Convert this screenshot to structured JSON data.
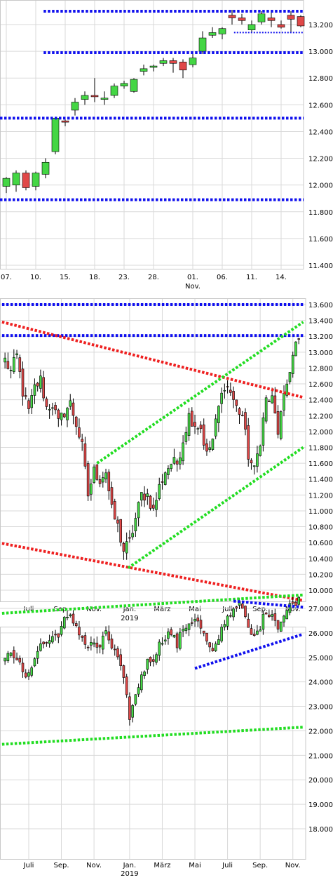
{
  "colors": {
    "up": "#44d644",
    "down": "#e04848",
    "wick": "#000000",
    "blue": "#1010ee",
    "red": "#ee2020",
    "green": "#22dd22",
    "grid": "#d9d9d9"
  },
  "chart_data": [
    {
      "type": "candlestick",
      "ylim": [
        11400,
        13400
      ],
      "yticks": [
        11400,
        11600,
        11800,
        12000,
        12200,
        12400,
        12600,
        12800,
        13000,
        13200
      ],
      "ytick_labels": [
        "11.400",
        "11.600",
        "11.800",
        "12.000",
        "12.200",
        "12.400",
        "12.600",
        "12.800",
        "13.000",
        "13.200"
      ],
      "xticks": [
        {
          "idx": 0,
          "label": "07."
        },
        {
          "idx": 3,
          "label": "10."
        },
        {
          "idx": 6,
          "label": "15."
        },
        {
          "idx": 9,
          "label": "18."
        },
        {
          "idx": 12,
          "label": "23."
        },
        {
          "idx": 15,
          "label": "28."
        },
        {
          "idx": 19,
          "label": "01."
        },
        {
          "idx": 22,
          "label": "06."
        },
        {
          "idx": 25,
          "label": "11."
        },
        {
          "idx": 28,
          "label": "14."
        }
      ],
      "sublabels": [
        {
          "idx": 19,
          "label": "Nov."
        }
      ],
      "candles": [
        {
          "o": 11990,
          "h": 12060,
          "l": 11940,
          "c": 12050
        },
        {
          "o": 12000,
          "h": 12110,
          "l": 11950,
          "c": 12090
        },
        {
          "o": 12090,
          "h": 12110,
          "l": 11960,
          "c": 11980
        },
        {
          "o": 11990,
          "h": 12100,
          "l": 11960,
          "c": 12090
        },
        {
          "o": 12080,
          "h": 12200,
          "l": 12050,
          "c": 12170
        },
        {
          "o": 12250,
          "h": 12510,
          "l": 12230,
          "c": 12500
        },
        {
          "o": 12480,
          "h": 12510,
          "l": 12440,
          "c": 12470
        },
        {
          "o": 12560,
          "h": 12650,
          "l": 12520,
          "c": 12620
        },
        {
          "o": 12640,
          "h": 12700,
          "l": 12600,
          "c": 12670
        },
        {
          "o": 12670,
          "h": 12800,
          "l": 12620,
          "c": 12660
        },
        {
          "o": 12640,
          "h": 12700,
          "l": 12600,
          "c": 12650
        },
        {
          "o": 12670,
          "h": 12760,
          "l": 12650,
          "c": 12740
        },
        {
          "o": 12740,
          "h": 12780,
          "l": 12720,
          "c": 12760
        },
        {
          "o": 12700,
          "h": 12800,
          "l": 12690,
          "c": 12790
        },
        {
          "o": 12850,
          "h": 12900,
          "l": 12820,
          "c": 12870
        },
        {
          "o": 12880,
          "h": 12900,
          "l": 12850,
          "c": 12890
        },
        {
          "o": 12910,
          "h": 12950,
          "l": 12890,
          "c": 12930
        },
        {
          "o": 12930,
          "h": 12950,
          "l": 12840,
          "c": 12910
        },
        {
          "o": 12920,
          "h": 12940,
          "l": 12800,
          "c": 12860
        },
        {
          "o": 12900,
          "h": 12980,
          "l": 12880,
          "c": 12950
        },
        {
          "o": 13000,
          "h": 13150,
          "l": 12980,
          "c": 13100
        },
        {
          "o": 13120,
          "h": 13180,
          "l": 13100,
          "c": 13140
        },
        {
          "o": 13130,
          "h": 13180,
          "l": 13090,
          "c": 13170
        },
        {
          "o": 13270,
          "h": 13310,
          "l": 13200,
          "c": 13250
        },
        {
          "o": 13250,
          "h": 13280,
          "l": 13200,
          "c": 13230
        },
        {
          "o": 13160,
          "h": 13230,
          "l": 13140,
          "c": 13200
        },
        {
          "o": 13220,
          "h": 13300,
          "l": 13200,
          "c": 13280
        },
        {
          "o": 13250,
          "h": 13300,
          "l": 13180,
          "c": 13230
        },
        {
          "o": 13200,
          "h": 13230,
          "l": 13170,
          "c": 13180
        },
        {
          "o": 13270,
          "h": 13300,
          "l": 13140,
          "c": 13240
        },
        {
          "o": 13260,
          "h": 13270,
          "l": 13180,
          "c": 13190
        }
      ],
      "lines": [
        {
          "color": "blue",
          "style": "heavy",
          "from": [
            3.8,
            13300
          ],
          "to": [
            30.4,
            13300
          ]
        },
        {
          "color": "blue",
          "style": "heavy",
          "from": [
            3.8,
            12990
          ],
          "to": [
            30.4,
            12990
          ]
        },
        {
          "color": "blue",
          "style": "heavy",
          "from": [
            -1,
            12500
          ],
          "to": [
            30.4,
            12500
          ]
        },
        {
          "color": "blue",
          "style": "heavy",
          "from": [
            -1,
            11890
          ],
          "to": [
            30.4,
            11890
          ]
        },
        {
          "color": "blue",
          "style": "thin",
          "from": [
            23.2,
            13140
          ],
          "to": [
            30.4,
            13140
          ]
        }
      ]
    },
    {
      "type": "candlestick",
      "ylim": [
        9900,
        13700
      ],
      "yticks": [
        10000,
        10200,
        10400,
        10600,
        10800,
        11000,
        11200,
        11400,
        11600,
        11800,
        12000,
        12200,
        12400,
        12600,
        12800,
        13000,
        13200,
        13400,
        13600
      ],
      "ytick_labels": [
        "10.000",
        "10.200",
        "10.400",
        "10.600",
        "10.800",
        "11.000",
        "11.200",
        "11.400",
        "11.600",
        "11.800",
        "12.000",
        "12.200",
        "12.400",
        "12.600",
        "12.800",
        "13.000",
        "13.200",
        "13.400",
        "13.600"
      ],
      "xticks": [
        {
          "idx": 8,
          "label": "Juli"
        },
        {
          "idx": 19,
          "label": "Sep."
        },
        {
          "idx": 30,
          "label": "Nov."
        },
        {
          "idx": 42,
          "label": "Jan."
        },
        {
          "idx": 53,
          "label": "März"
        },
        {
          "idx": 64,
          "label": "Mai"
        },
        {
          "idx": 75,
          "label": "Juli"
        },
        {
          "idx": 86,
          "label": "Sep."
        },
        {
          "idx": 97,
          "label": "Nov."
        }
      ],
      "sublabels": [
        {
          "idx": 42,
          "label": "2019"
        }
      ],
      "close_points": [
        [
          0,
          12900
        ],
        [
          2,
          12750
        ],
        [
          4,
          12950
        ],
        [
          6,
          12500
        ],
        [
          8,
          12250
        ],
        [
          10,
          12550
        ],
        [
          12,
          12650
        ],
        [
          14,
          12300
        ],
        [
          16,
          12350
        ],
        [
          18,
          12100
        ],
        [
          20,
          12250
        ],
        [
          22,
          12350
        ],
        [
          24,
          12100
        ],
        [
          26,
          11800
        ],
        [
          28,
          11200
        ],
        [
          30,
          11500
        ],
        [
          32,
          11400
        ],
        [
          34,
          11500
        ],
        [
          36,
          11000
        ],
        [
          38,
          10800
        ],
        [
          40,
          10500
        ],
        [
          42,
          10600
        ],
        [
          44,
          10900
        ],
        [
          46,
          11200
        ],
        [
          48,
          11200
        ],
        [
          50,
          11000
        ],
        [
          52,
          11300
        ],
        [
          54,
          11500
        ],
        [
          56,
          11600
        ],
        [
          58,
          11600
        ],
        [
          60,
          11900
        ],
        [
          62,
          12200
        ],
        [
          64,
          12100
        ],
        [
          66,
          12050
        ],
        [
          68,
          11700
        ],
        [
          70,
          11900
        ],
        [
          72,
          12300
        ],
        [
          74,
          12600
        ],
        [
          76,
          12500
        ],
        [
          78,
          12300
        ],
        [
          80,
          12200
        ],
        [
          82,
          11700
        ],
        [
          84,
          11500
        ],
        [
          86,
          11900
        ],
        [
          88,
          12400
        ],
        [
          90,
          12400
        ],
        [
          92,
          12000
        ],
        [
          94,
          12400
        ],
        [
          96,
          12800
        ],
        [
          98,
          13100
        ]
      ],
      "lines": [
        {
          "color": "blue",
          "style": "heavy",
          "from": [
            -1,
            13600
          ],
          "to": [
            100.5,
            13600
          ]
        },
        {
          "color": "blue",
          "style": "heavy",
          "from": [
            -1,
            13210
          ],
          "to": [
            100.5,
            13210
          ]
        },
        {
          "color": "red",
          "style": "heavy",
          "from": [
            -1,
            13380
          ],
          "to": [
            100.5,
            12430
          ]
        },
        {
          "color": "red",
          "style": "heavy",
          "from": [
            -1,
            10590
          ],
          "to": [
            100.5,
            9870
          ]
        },
        {
          "color": "green",
          "style": "heavy",
          "from": [
            31,
            11600
          ],
          "to": [
            100.5,
            13380
          ]
        },
        {
          "color": "green",
          "style": "heavy",
          "from": [
            41.5,
            10280
          ],
          "to": [
            100.5,
            11800
          ]
        }
      ]
    },
    {
      "type": "candlestick",
      "ylim": [
        17100,
        27900
      ],
      "yticks": [
        18000,
        19000,
        20000,
        21000,
        22000,
        23000,
        24000,
        25000,
        26000,
        27000
      ],
      "ytick_labels": [
        "18.000",
        "19.000",
        "20.000",
        "21.000",
        "22.000",
        "23.000",
        "24.000",
        "25.000",
        "26.000",
        "27.000"
      ],
      "xticks": [
        {
          "idx": 8,
          "label": "Juli"
        },
        {
          "idx": 19,
          "label": "Sep."
        },
        {
          "idx": 30,
          "label": "Nov."
        },
        {
          "idx": 42,
          "label": "Jan."
        },
        {
          "idx": 53,
          "label": "März"
        },
        {
          "idx": 64,
          "label": "Mai"
        },
        {
          "idx": 75,
          "label": "Juli"
        },
        {
          "idx": 86,
          "label": "Sep."
        },
        {
          "idx": 97,
          "label": "Nov."
        }
      ],
      "sublabels": [
        {
          "idx": 42,
          "label": "2019"
        }
      ],
      "close_points": [
        [
          0,
          24800
        ],
        [
          2,
          25300
        ],
        [
          4,
          25000
        ],
        [
          6,
          24300
        ],
        [
          8,
          24200
        ],
        [
          10,
          25100
        ],
        [
          12,
          25500
        ],
        [
          14,
          25600
        ],
        [
          16,
          25800
        ],
        [
          18,
          26000
        ],
        [
          20,
          26500
        ],
        [
          22,
          26600
        ],
        [
          24,
          26300
        ],
        [
          26,
          25800
        ],
        [
          28,
          25400
        ],
        [
          30,
          25600
        ],
        [
          32,
          25300
        ],
        [
          34,
          26100
        ],
        [
          36,
          25400
        ],
        [
          38,
          25000
        ],
        [
          40,
          24000
        ],
        [
          42,
          22600
        ],
        [
          44,
          23400
        ],
        [
          46,
          24300
        ],
        [
          48,
          24800
        ],
        [
          50,
          25000
        ],
        [
          52,
          25500
        ],
        [
          54,
          25900
        ],
        [
          56,
          26000
        ],
        [
          58,
          25500
        ],
        [
          60,
          26200
        ],
        [
          62,
          26400
        ],
        [
          64,
          26600
        ],
        [
          66,
          26200
        ],
        [
          68,
          25600
        ],
        [
          70,
          25100
        ],
        [
          72,
          25800
        ],
        [
          74,
          26500
        ],
        [
          76,
          26800
        ],
        [
          78,
          27200
        ],
        [
          80,
          27000
        ],
        [
          82,
          26100
        ],
        [
          84,
          25800
        ],
        [
          86,
          26300
        ],
        [
          88,
          26900
        ],
        [
          90,
          26800
        ],
        [
          92,
          26300
        ],
        [
          94,
          26700
        ],
        [
          96,
          27100
        ],
        [
          98,
          27300
        ]
      ],
      "lines": [
        {
          "color": "green",
          "style": "heavy",
          "from": [
            -1,
            26800
          ],
          "to": [
            100.5,
            27550
          ]
        },
        {
          "color": "green",
          "style": "heavy",
          "from": [
            -1,
            21450
          ],
          "to": [
            100.5,
            22150
          ]
        },
        {
          "color": "blue",
          "style": "heavy",
          "from": [
            64,
            24550
          ],
          "to": [
            100.5,
            25950
          ]
        },
        {
          "color": "blue",
          "style": "heavy",
          "from": [
            77,
            27300
          ],
          "to": [
            100.5,
            27050
          ]
        }
      ]
    }
  ]
}
